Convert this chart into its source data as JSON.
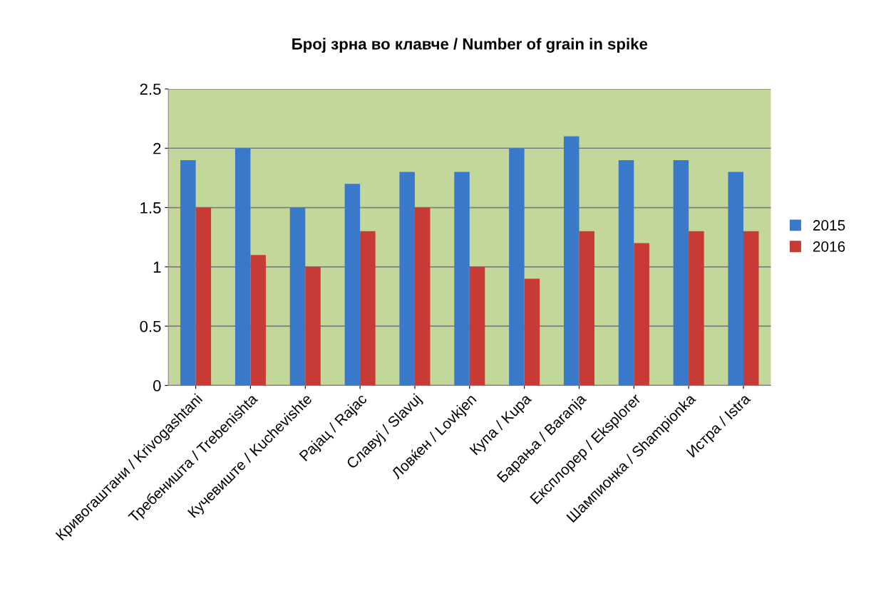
{
  "chart_data": {
    "type": "bar",
    "title": "Број зрна во клавче / Number of grain in spike",
    "categories": [
      "Кривогаштани / Krivogashtani",
      "Требеништа / Trebenishta",
      "Кучевиште / Kuchevishte",
      "Рајац / Rajac",
      "Славуј / Slavuj",
      "Ловќен / Lovkjen",
      "Купа / Kupa",
      "Барања / Baranja",
      "Експлорер / Eksplorer",
      "Шампионка / Shampionka",
      "Истра / Istra"
    ],
    "series": [
      {
        "name": "2015",
        "color": "#3a78c9",
        "values": [
          1.9,
          2.0,
          1.5,
          1.7,
          1.8,
          1.8,
          2.0,
          2.1,
          1.9,
          1.9,
          1.8
        ]
      },
      {
        "name": "2016",
        "color": "#c83a36",
        "values": [
          1.5,
          1.1,
          1.0,
          1.3,
          1.5,
          1.0,
          0.9,
          1.3,
          1.2,
          1.3,
          1.3
        ]
      }
    ],
    "ylim": [
      0,
      2.5
    ],
    "yticks": [
      0,
      0.5,
      1,
      1.5,
      2,
      2.5
    ],
    "grid": "y",
    "legend": "right"
  }
}
